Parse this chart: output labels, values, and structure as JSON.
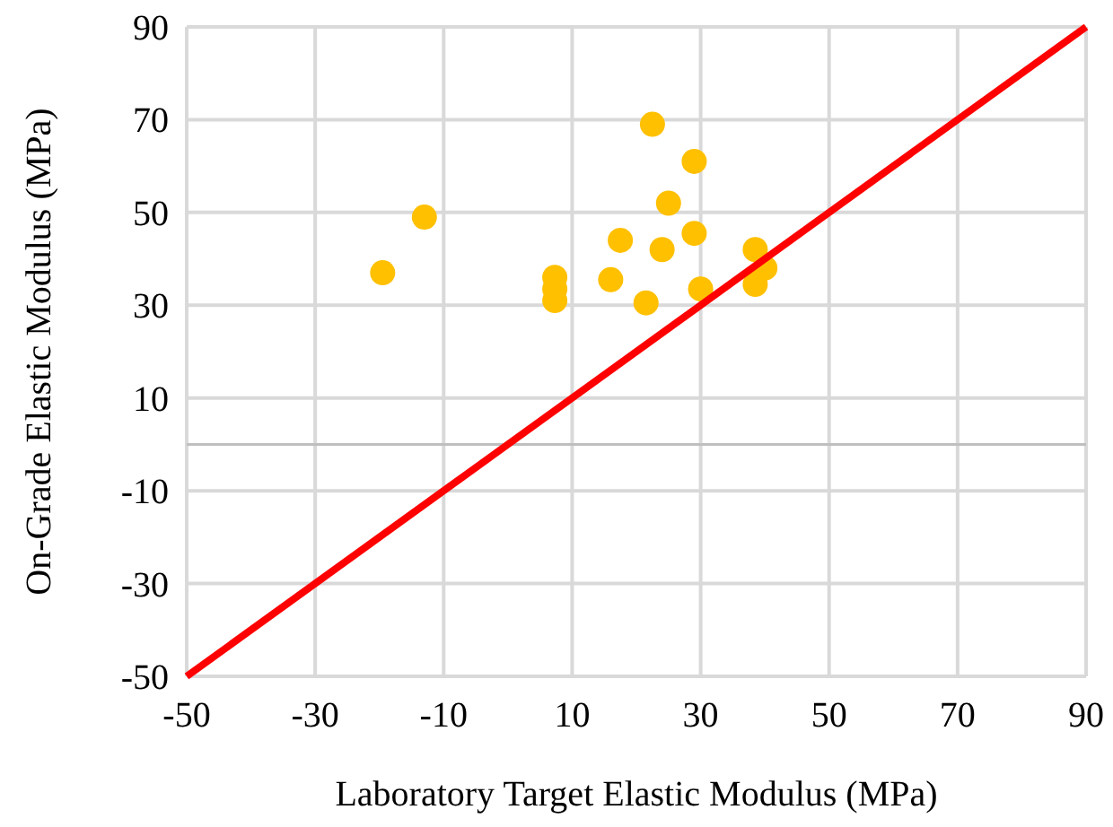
{
  "chart_data": {
    "type": "scatter",
    "xlabel": "Laboratory Target Elastic Modulus (MPa)",
    "ylabel": "On-Grade Elastic Modulus (MPa)",
    "xlim": [
      -50,
      90
    ],
    "ylim": [
      -50,
      90
    ],
    "xticks": [
      -50,
      -30,
      -10,
      10,
      30,
      50,
      70,
      90
    ],
    "yticks": [
      -50,
      -30,
      -10,
      10,
      30,
      50,
      70,
      90
    ],
    "grid": true,
    "marker": "circle",
    "series": [
      {
        "color": "#ffc000",
        "x": [
          -19.5,
          -13,
          7.3,
          7.3,
          7.3,
          16,
          17.5,
          21.5,
          22.5,
          24,
          25,
          29,
          29,
          30,
          38.5,
          38.5,
          40
        ],
        "values": [
          37,
          49,
          36,
          33.5,
          31,
          35.5,
          44,
          30.5,
          69,
          42,
          52,
          61,
          45.5,
          33.5,
          42,
          34.5,
          38
        ]
      },
      {
        "type": "line",
        "color": "#ff0000",
        "x": [
          -50,
          90
        ],
        "values": [
          -50,
          90
        ],
        "marker": "none",
        "line_style": "solid"
      }
    ]
  }
}
